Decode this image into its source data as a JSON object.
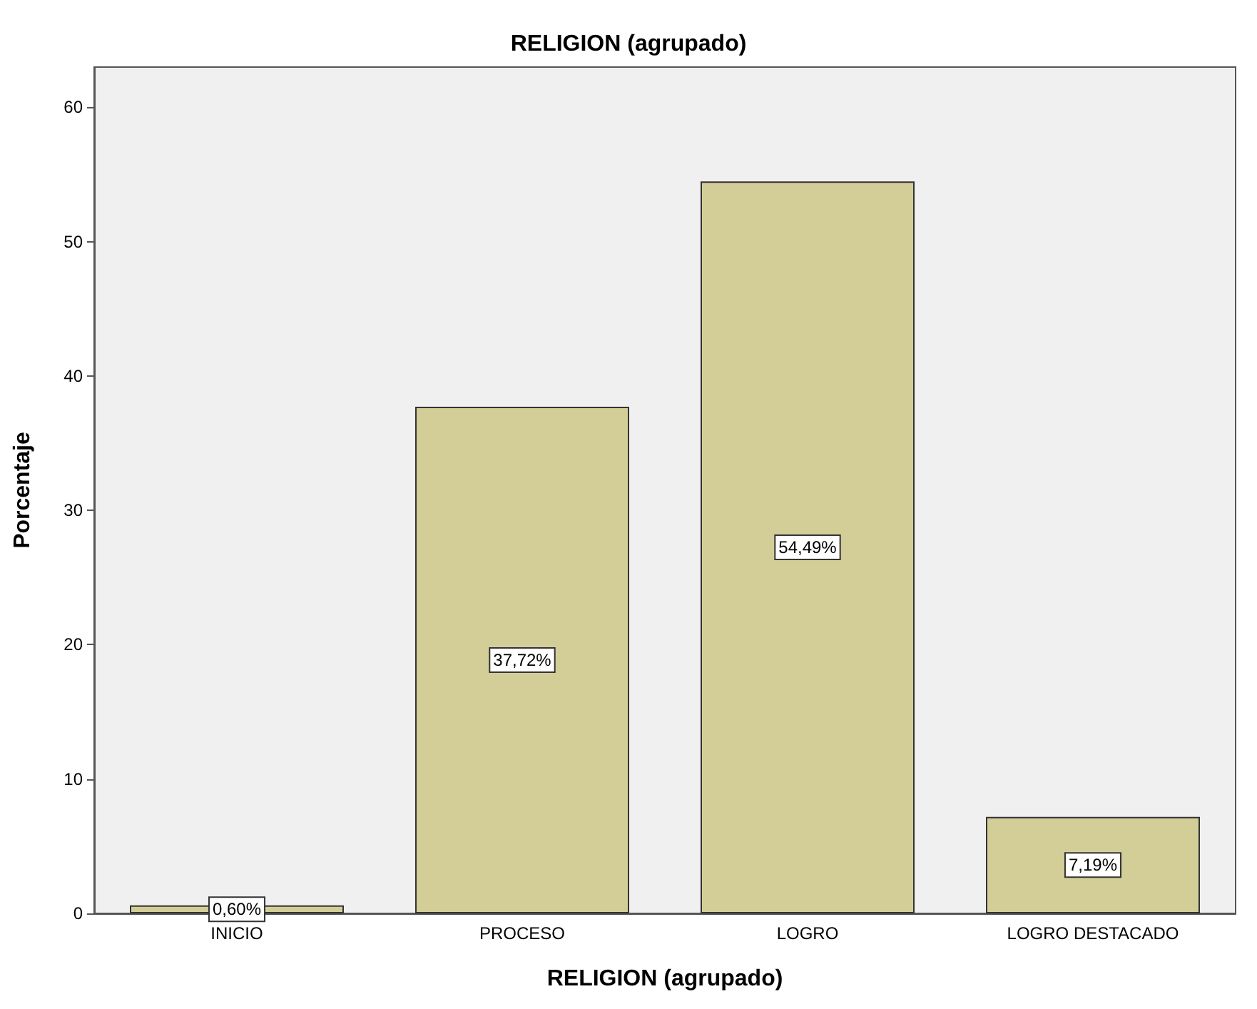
{
  "chart_data": {
    "type": "bar",
    "title": "RELIGION (agrupado)",
    "xlabel": "RELIGION (agrupado)",
    "ylabel": "Porcentaje",
    "categories": [
      "INICIO",
      "PROCESO",
      "LOGRO",
      "LOGRO DESTACADO"
    ],
    "values": [
      0.6,
      37.72,
      54.49,
      7.19
    ],
    "value_labels": [
      "0,60%",
      "37,72%",
      "54,49%",
      "7,19%"
    ],
    "color": "#d3ce97",
    "ylim": [
      0,
      63
    ],
    "yticks": [
      0,
      10,
      20,
      30,
      40,
      50,
      60
    ],
    "grid": false
  }
}
